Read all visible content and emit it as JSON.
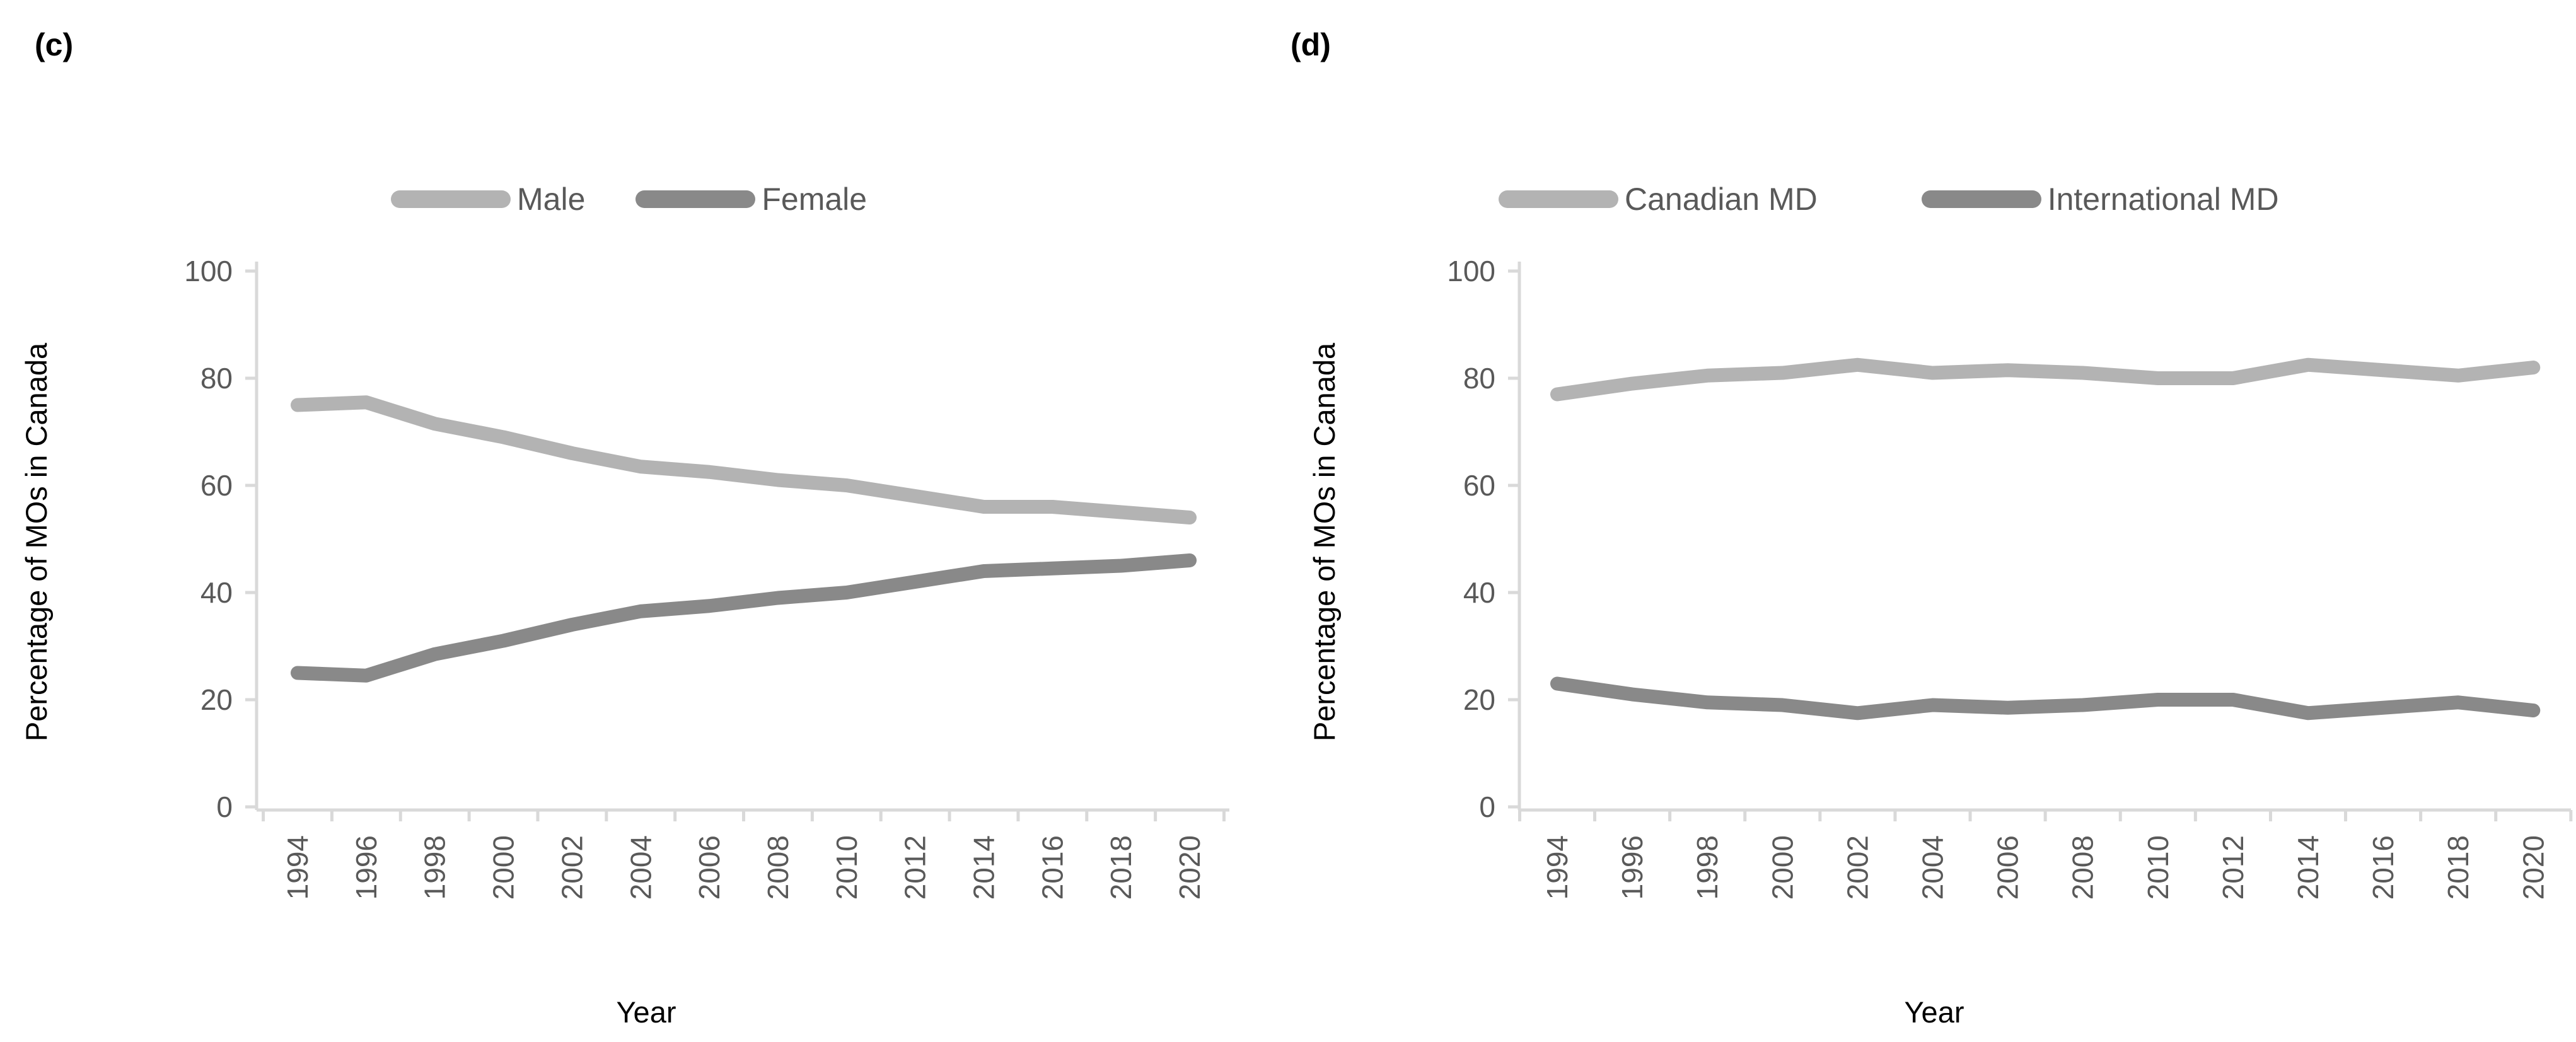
{
  "styles": {
    "axis_color": "#d9d9d9",
    "tick_label_color": "#595959",
    "legend_text_color": "#595959",
    "title_color": "#000000"
  },
  "chart_data": [
    {
      "id": "c",
      "panel_label": "(c)",
      "type": "line",
      "xlabel": "Year",
      "ylabel": "Percentage of MOs in Canada",
      "ylim": [
        0,
        100
      ],
      "yticks": [
        0,
        20,
        40,
        60,
        80,
        100
      ],
      "grid": false,
      "legend_position": "top-center",
      "x": [
        1994,
        1996,
        1998,
        2000,
        2002,
        2004,
        2006,
        2008,
        2010,
        2012,
        2014,
        2016,
        2018,
        2020
      ],
      "series": [
        {
          "name": "Male",
          "color": "#b3b3b3",
          "values": [
            75,
            75.5,
            71.5,
            69,
            66,
            63.5,
            62.5,
            61,
            60,
            58,
            56,
            56,
            55,
            54
          ]
        },
        {
          "name": "Female",
          "color": "#898989",
          "values": [
            25,
            24.5,
            28.5,
            31,
            34,
            36.5,
            37.5,
            39,
            40,
            42,
            44,
            44.5,
            45,
            46
          ]
        }
      ]
    },
    {
      "id": "d",
      "panel_label": "(d)",
      "type": "line",
      "xlabel": "Year",
      "ylabel": "Percentage of MOs in Canada",
      "ylim": [
        0,
        100
      ],
      "yticks": [
        0,
        20,
        40,
        60,
        80,
        100
      ],
      "grid": false,
      "legend_position": "top-center",
      "x": [
        1994,
        1996,
        1998,
        2000,
        2002,
        2004,
        2006,
        2008,
        2010,
        2012,
        2014,
        2016,
        2018,
        2020
      ],
      "series": [
        {
          "name": "Canadian MD",
          "color": "#b3b3b3",
          "values": [
            77,
            79,
            80.5,
            81,
            82.5,
            81,
            81.5,
            81,
            80,
            80,
            82.5,
            81.5,
            80.5,
            82
          ]
        },
        {
          "name": "International MD",
          "color": "#898989",
          "values": [
            23,
            21,
            19.5,
            19,
            17.5,
            19,
            18.5,
            19,
            20,
            20,
            17.5,
            18.5,
            19.5,
            18
          ]
        }
      ]
    }
  ]
}
